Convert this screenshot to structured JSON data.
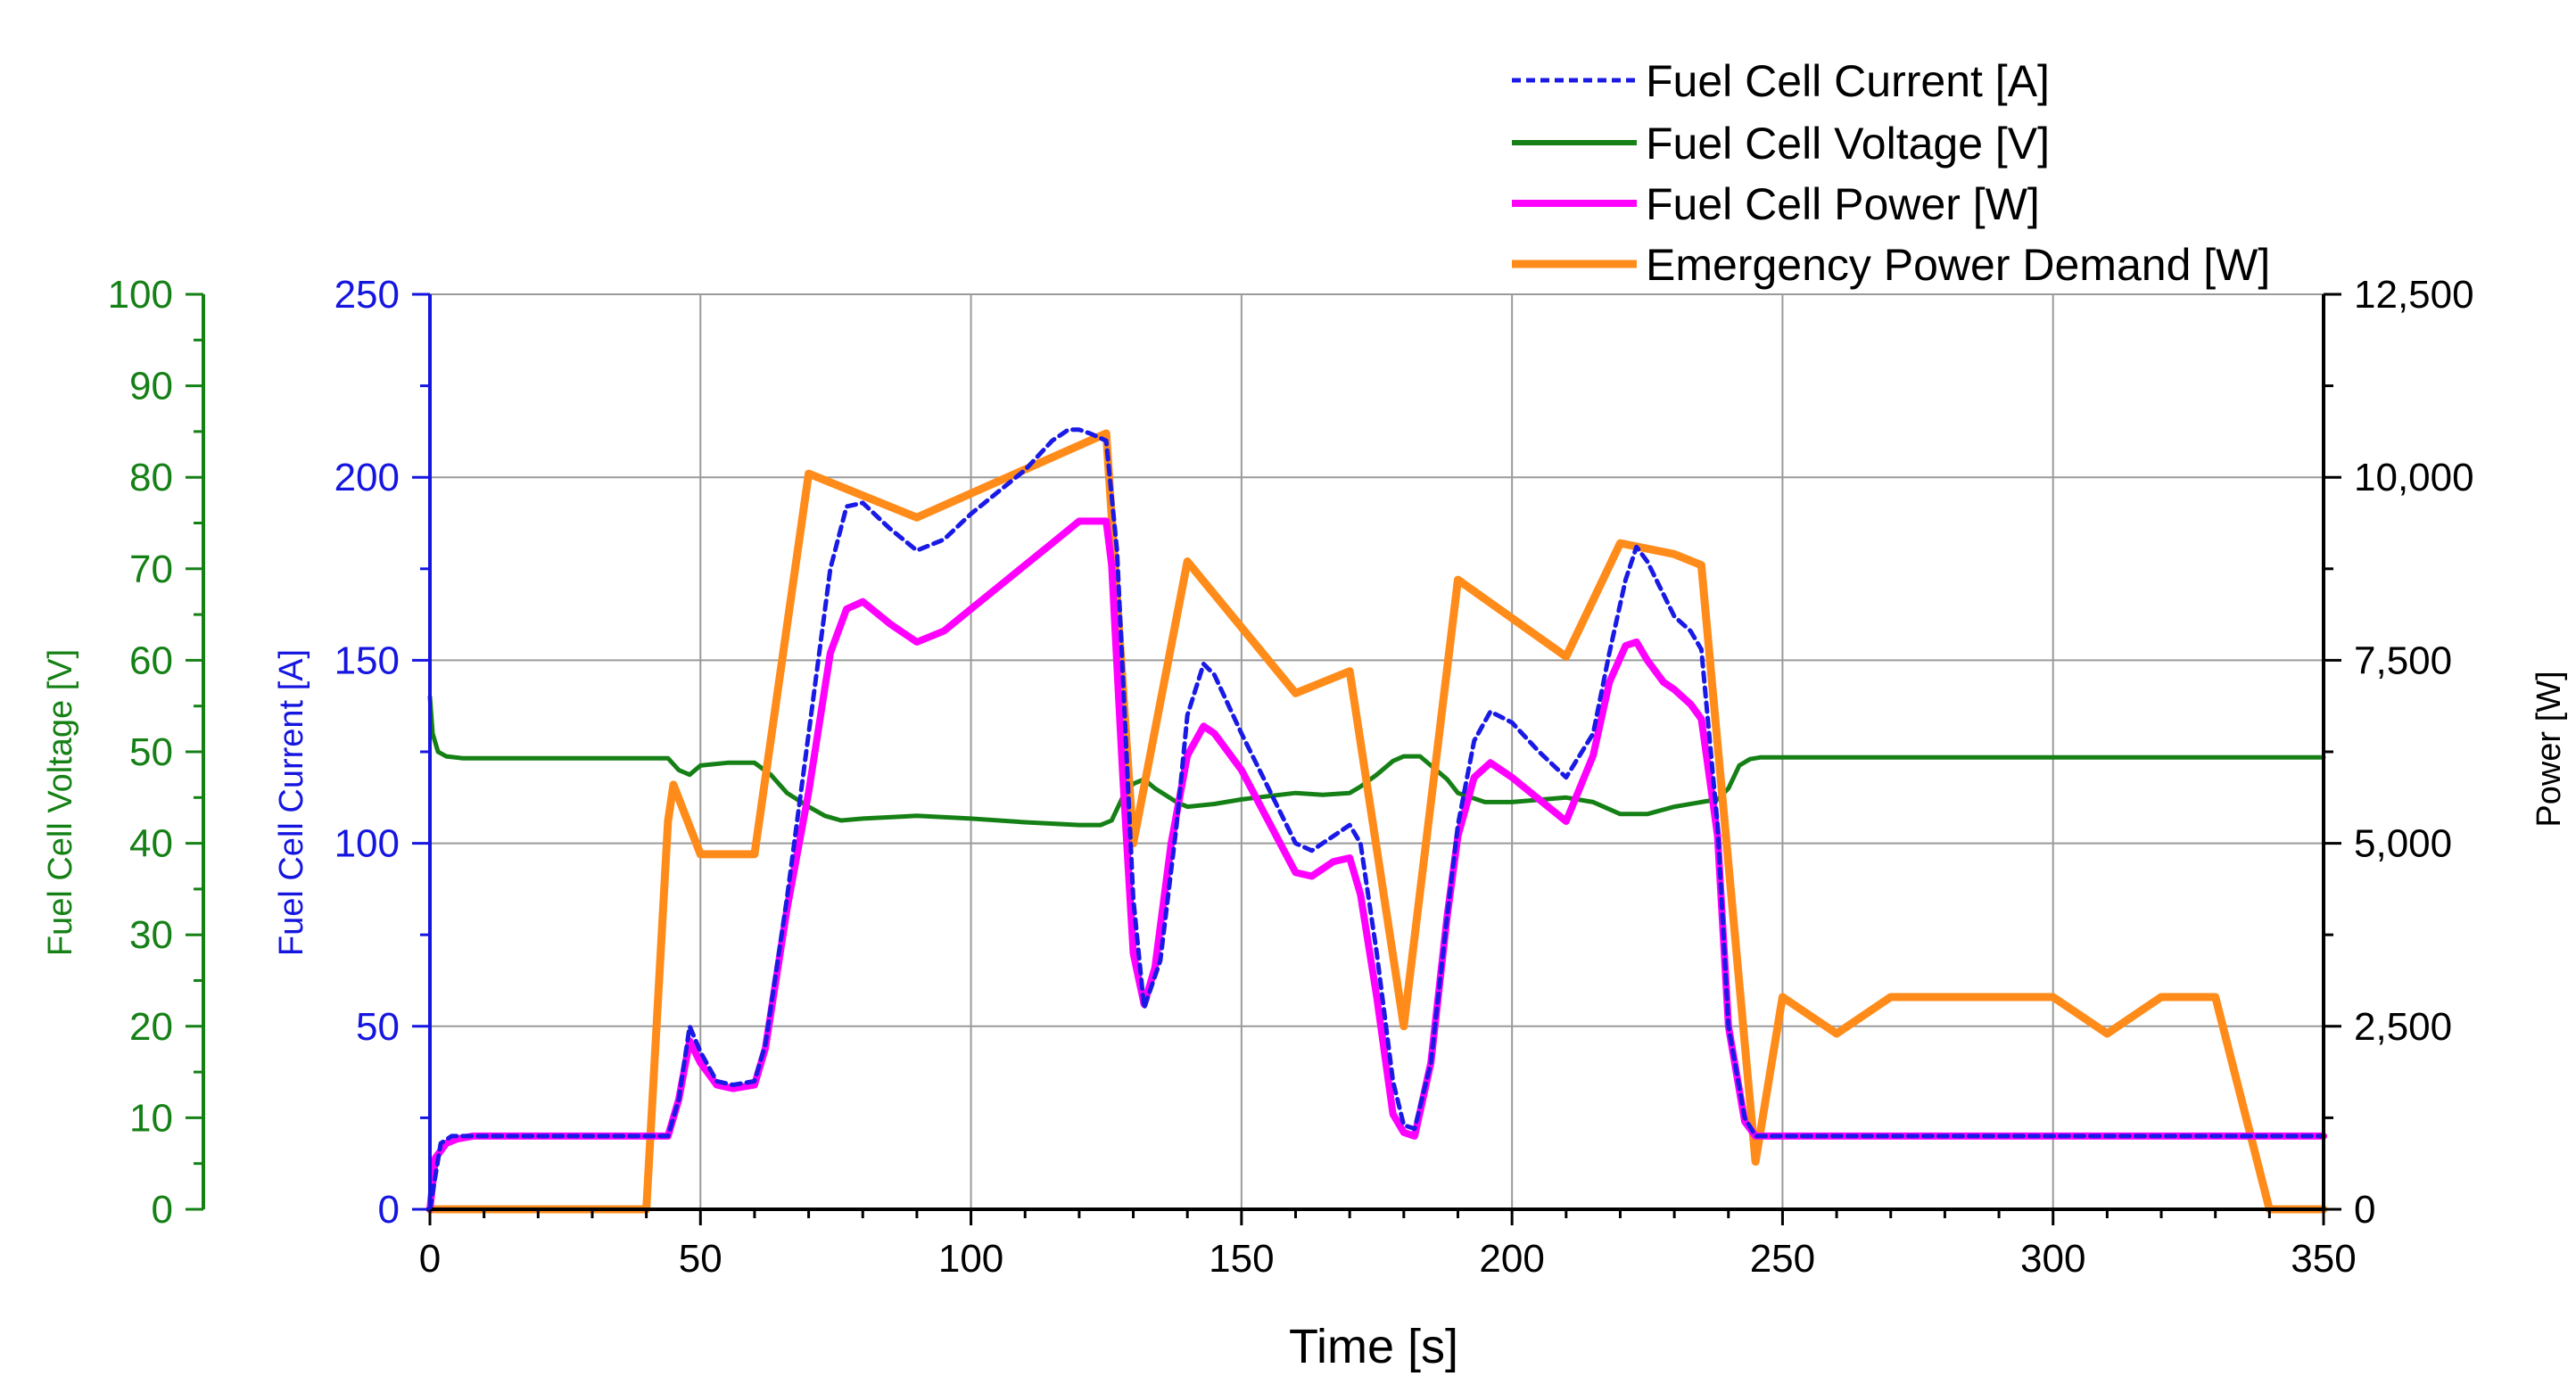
{
  "chart_data": {
    "type": "line",
    "xlabel": "Time [s]",
    "xlim": [
      0,
      350
    ],
    "x_ticks": [
      "0",
      "50",
      "100",
      "150",
      "200",
      "250",
      "300",
      "350"
    ],
    "grid": true,
    "legend_position": "top-right",
    "axes": {
      "voltage": {
        "label": "Fuel Cell Voltage [V]",
        "color": "#158015",
        "side": "left-outer",
        "ylim": [
          0,
          100
        ],
        "ticks": [
          "0",
          "10",
          "20",
          "30",
          "40",
          "50",
          "60",
          "70",
          "80",
          "90",
          "100"
        ]
      },
      "current": {
        "label": "Fuel Cell Current [A]",
        "color": "#1515e0",
        "side": "left-inner",
        "ylim": [
          0,
          250
        ],
        "ticks": [
          "0",
          "50",
          "100",
          "150",
          "200",
          "250"
        ]
      },
      "power": {
        "label": "Power [W]",
        "color": "#000000",
        "side": "right",
        "ylim": [
          0,
          12500
        ],
        "ticks": [
          "0",
          "2,500",
          "5,000",
          "7,500",
          "10,000",
          "12,500"
        ]
      }
    },
    "series": [
      {
        "name": "Fuel Cell Current [A]",
        "axis": "current",
        "color": "#1a1ae6",
        "style": "dashed",
        "x": [
          0,
          2,
          4,
          8,
          20,
          30,
          40,
          44,
          46,
          48,
          50,
          53,
          56,
          60,
          62,
          66,
          70,
          74,
          77,
          80,
          85,
          90,
          95,
          100,
          105,
          110,
          115,
          118,
          120,
          122,
          125,
          127,
          130,
          132,
          135,
          138,
          140,
          143,
          145,
          150,
          155,
          160,
          163,
          167,
          170,
          172,
          175,
          178,
          180,
          182,
          185,
          188,
          190,
          193,
          196,
          200,
          205,
          210,
          215,
          218,
          221,
          223,
          225,
          228,
          230,
          233,
          235,
          238,
          240,
          243,
          245,
          250,
          260,
          300,
          350
        ],
        "y": [
          0,
          18,
          20,
          20,
          20,
          20,
          20,
          20,
          30,
          50,
          43,
          35,
          34,
          35,
          45,
          85,
          130,
          175,
          192,
          193,
          186,
          180,
          183,
          190,
          196,
          202,
          210,
          213,
          213,
          212,
          210,
          180,
          85,
          55,
          68,
          105,
          135,
          149,
          146,
          130,
          115,
          100,
          98,
          102,
          105,
          100,
          70,
          35,
          23,
          22,
          40,
          80,
          105,
          128,
          136,
          133,
          125,
          118,
          130,
          152,
          172,
          181,
          177,
          168,
          162,
          158,
          153,
          105,
          50,
          25,
          20,
          20,
          20,
          20,
          20
        ]
      },
      {
        "name": "Fuel Cell Voltage [V]",
        "axis": "voltage",
        "color": "#158015",
        "style": "solid",
        "x": [
          0,
          0.5,
          1.5,
          3,
          6,
          15,
          30,
          44,
          46,
          48,
          50,
          55,
          60,
          63,
          66,
          70,
          73,
          76,
          80,
          90,
          100,
          110,
          120,
          124,
          126,
          128,
          130,
          132,
          134,
          138,
          140,
          145,
          150,
          160,
          165,
          170,
          172,
          175,
          178,
          180,
          183,
          185,
          188,
          190,
          195,
          200,
          210,
          215,
          220,
          225,
          230,
          235,
          238,
          240,
          242,
          244,
          246,
          250,
          300,
          350
        ],
        "y": [
          56,
          52,
          50,
          49.5,
          49.3,
          49.3,
          49.3,
          49.3,
          48,
          47.5,
          48.5,
          48.8,
          48.8,
          47.5,
          45.5,
          44,
          43,
          42.5,
          42.7,
          43,
          42.7,
          42.3,
          42,
          42,
          42.5,
          45,
          46.5,
          47,
          46,
          44.5,
          44,
          44.3,
          44.8,
          45.5,
          45.3,
          45.5,
          46.2,
          47.5,
          49,
          49.5,
          49.5,
          48.5,
          47,
          45.5,
          44.5,
          44.5,
          45,
          44.5,
          43.2,
          43.2,
          44,
          44.5,
          44.8,
          46,
          48.5,
          49.2,
          49.4,
          49.4,
          49.4,
          49.4
        ]
      },
      {
        "name": "Fuel Cell Power [W]",
        "axis": "power",
        "color": "#ff00ff",
        "style": "solid",
        "x": [
          0,
          1,
          3,
          5,
          8,
          20,
          30,
          40,
          44,
          46,
          48,
          50,
          53,
          56,
          60,
          62,
          66,
          70,
          74,
          77,
          80,
          85,
          90,
          95,
          100,
          105,
          110,
          115,
          120,
          125,
          126,
          128,
          130,
          132,
          134,
          137,
          140,
          143,
          145,
          150,
          155,
          160,
          163,
          167,
          170,
          172,
          175,
          178,
          180,
          182,
          185,
          188,
          190,
          193,
          196,
          200,
          205,
          210,
          215,
          218,
          221,
          223,
          225,
          228,
          230,
          233,
          235,
          238,
          240,
          243,
          245,
          247,
          250,
          300,
          350
        ],
        "y": [
          0,
          700,
          900,
          960,
          1000,
          1000,
          1000,
          1000,
          1000,
          1500,
          2300,
          2000,
          1700,
          1650,
          1700,
          2200,
          4100,
          5700,
          7600,
          8200,
          8300,
          8000,
          7750,
          7900,
          8200,
          8500,
          8800,
          9100,
          9400,
          9400,
          8800,
          6000,
          3500,
          2800,
          3300,
          5000,
          6200,
          6600,
          6500,
          6000,
          5300,
          4600,
          4550,
          4750,
          4800,
          4300,
          2900,
          1300,
          1050,
          1000,
          2000,
          4000,
          5100,
          5900,
          6100,
          5900,
          5600,
          5300,
          6200,
          7200,
          7700,
          7750,
          7500,
          7200,
          7100,
          6900,
          6700,
          5100,
          2500,
          1200,
          1000,
          1000,
          1000,
          1000,
          1000
        ]
      },
      {
        "name": "Emergency Power Demand [W]",
        "axis": "power",
        "color": "#ff8c1a",
        "style": "solid",
        "x": [
          0,
          40,
          44,
          45,
          50,
          60,
          70,
          90,
          125,
          130,
          140,
          160,
          170,
          180,
          190,
          210,
          220,
          230,
          235,
          245,
          250,
          260,
          270,
          300,
          310,
          320,
          330,
          340,
          350
        ],
        "y": [
          0,
          0,
          5300,
          5800,
          4850,
          4850,
          10050,
          9450,
          10600,
          5000,
          8850,
          7050,
          7350,
          2500,
          8600,
          7550,
          9100,
          8950,
          8800,
          650,
          2900,
          2400,
          2900,
          2900,
          2400,
          2900,
          2900,
          0,
          0
        ]
      }
    ]
  }
}
